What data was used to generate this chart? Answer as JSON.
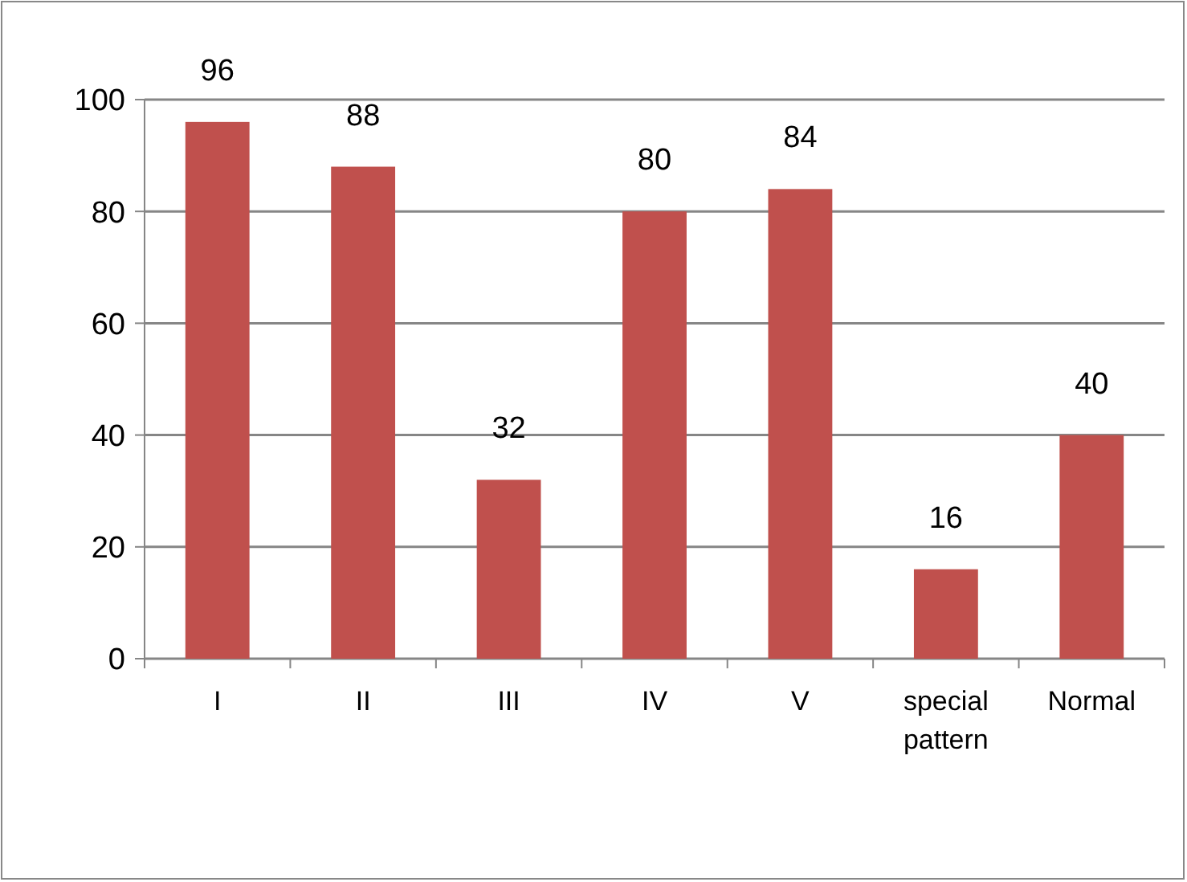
{
  "chart_data": {
    "type": "bar",
    "categories": [
      "I",
      "II",
      "III",
      "IV",
      "V",
      "special pattern",
      "Normal"
    ],
    "values": [
      96,
      88,
      32,
      80,
      84,
      16,
      40
    ],
    "color": "#c0504d",
    "ylim": [
      0,
      100
    ],
    "yticks": [
      0,
      20,
      40,
      60,
      80,
      100
    ],
    "grid": "y",
    "data_labels": true
  }
}
